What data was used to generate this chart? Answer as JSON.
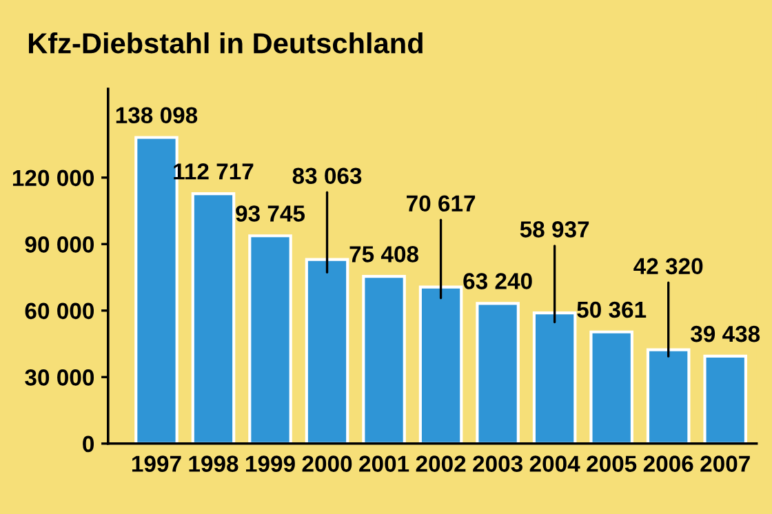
{
  "chart_data": {
    "type": "bar",
    "title": "Kfz-Diebstahl in Deutschland",
    "categories": [
      "1997",
      "1998",
      "1999",
      "2000",
      "2001",
      "2002",
      "2003",
      "2004",
      "2005",
      "2006",
      "2007"
    ],
    "values": [
      138098,
      112717,
      93745,
      83063,
      75408,
      70617,
      63240,
      58937,
      50361,
      42320,
      39438
    ],
    "value_labels": [
      "138 098",
      "112 717",
      "93 745",
      "83 063",
      "75 408",
      "70 617",
      "63 240",
      "58 937",
      "50 361",
      "42 320",
      "39 438"
    ],
    "color": "#2f95d6",
    "ylim": [
      0,
      160000
    ],
    "yticks": [
      0,
      {
        "value": 30000,
        "label": "30 000"
      },
      {
        "value": 60000,
        "label": "60 000"
      },
      {
        "value": 90000,
        "label": "90 000"
      },
      {
        "value": 120000,
        "label": "120 000"
      }
    ],
    "grid": false
  }
}
